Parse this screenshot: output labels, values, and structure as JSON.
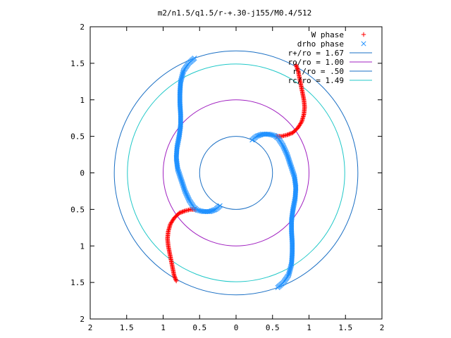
{
  "chart_data": {
    "type": "scatter",
    "title": "m2/n1.5/q1.5/r-+.30-j155/M0.4/512",
    "xlabel": "",
    "ylabel": "",
    "xlim": [
      -2,
      2
    ],
    "ylim": [
      -2,
      2
    ],
    "x_ticks": [
      -2,
      -1.5,
      -1,
      -0.5,
      0,
      0.5,
      1,
      1.5,
      2
    ],
    "y_ticks": [
      -2,
      -1.5,
      -1,
      -0.5,
      0,
      0.5,
      1,
      1.5,
      2
    ],
    "x_tick_labels": [
      "2",
      "1.5",
      "1",
      "0.5",
      "0",
      "0.5",
      "1",
      "1.5",
      "2"
    ],
    "y_tick_labels": [
      "2",
      "1.5",
      "1",
      "0.5",
      "0",
      "0.5",
      "1",
      "1.5",
      "2"
    ],
    "grid": false,
    "legend_position": "top-right",
    "series": [
      {
        "name": "W phase",
        "marker": "plus",
        "color": "#ff0000",
        "arms": [
          [
            [
              0.55,
              0.5
            ],
            [
              0.62,
              0.5
            ],
            [
              0.7,
              0.52
            ],
            [
              0.78,
              0.55
            ],
            [
              0.85,
              0.62
            ],
            [
              0.9,
              0.7
            ],
            [
              0.93,
              0.8
            ],
            [
              0.94,
              0.9
            ],
            [
              0.93,
              1.0
            ],
            [
              0.91,
              1.1
            ],
            [
              0.89,
              1.2
            ],
            [
              0.87,
              1.3
            ],
            [
              0.85,
              1.4
            ],
            [
              0.82,
              1.48
            ]
          ],
          [
            [
              -0.55,
              -0.5
            ],
            [
              -0.62,
              -0.5
            ],
            [
              -0.7,
              -0.52
            ],
            [
              -0.78,
              -0.55
            ],
            [
              -0.85,
              -0.62
            ],
            [
              -0.9,
              -0.7
            ],
            [
              -0.93,
              -0.8
            ],
            [
              -0.94,
              -0.9
            ],
            [
              -0.93,
              -1.0
            ],
            [
              -0.91,
              -1.1
            ],
            [
              -0.89,
              -1.2
            ],
            [
              -0.87,
              -1.3
            ],
            [
              -0.85,
              -1.4
            ],
            [
              -0.82,
              -1.48
            ]
          ]
        ]
      },
      {
        "name": "drho phase",
        "marker": "cross",
        "color": "#1e90ff",
        "arms": [
          [
            [
              0.22,
              0.45
            ],
            [
              0.28,
              0.5
            ],
            [
              0.36,
              0.53
            ],
            [
              0.45,
              0.53
            ],
            [
              0.53,
              0.51
            ],
            [
              0.58,
              0.47
            ],
            [
              0.64,
              0.38
            ],
            [
              0.7,
              0.25
            ],
            [
              0.75,
              0.1
            ],
            [
              0.8,
              -0.05
            ],
            [
              0.82,
              -0.2
            ],
            [
              0.81,
              -0.35
            ],
            [
              0.78,
              -0.5
            ],
            [
              0.76,
              -0.65
            ],
            [
              0.76,
              -0.8
            ],
            [
              0.77,
              -0.95
            ],
            [
              0.77,
              -1.1
            ],
            [
              0.76,
              -1.25
            ],
            [
              0.72,
              -1.4
            ],
            [
              0.65,
              -1.5
            ],
            [
              0.57,
              -1.57
            ]
          ],
          [
            [
              -0.22,
              -0.45
            ],
            [
              -0.28,
              -0.5
            ],
            [
              -0.36,
              -0.53
            ],
            [
              -0.45,
              -0.53
            ],
            [
              -0.53,
              -0.51
            ],
            [
              -0.58,
              -0.47
            ],
            [
              -0.64,
              -0.38
            ],
            [
              -0.7,
              -0.25
            ],
            [
              -0.75,
              -0.1
            ],
            [
              -0.8,
              0.05
            ],
            [
              -0.82,
              0.2
            ],
            [
              -0.81,
              0.35
            ],
            [
              -0.78,
              0.5
            ],
            [
              -0.76,
              0.65
            ],
            [
              -0.76,
              0.8
            ],
            [
              -0.77,
              0.95
            ],
            [
              -0.77,
              1.1
            ],
            [
              -0.76,
              1.25
            ],
            [
              -0.72,
              1.4
            ],
            [
              -0.65,
              1.5
            ],
            [
              -0.57,
              1.57
            ]
          ]
        ]
      }
    ],
    "circles": [
      {
        "label": "r+/ro = 1.67",
        "radius": 1.67,
        "color": "#1a6fc4"
      },
      {
        "label": "ro/ro = 1.00",
        "radius": 1.0,
        "color": "#a020c0"
      },
      {
        "label": "r-/ro = .50",
        "radius": 0.5,
        "color": "#1a6fc4"
      },
      {
        "label": "rc/ro = 1.49",
        "radius": 1.49,
        "color": "#20c8c8"
      }
    ]
  }
}
